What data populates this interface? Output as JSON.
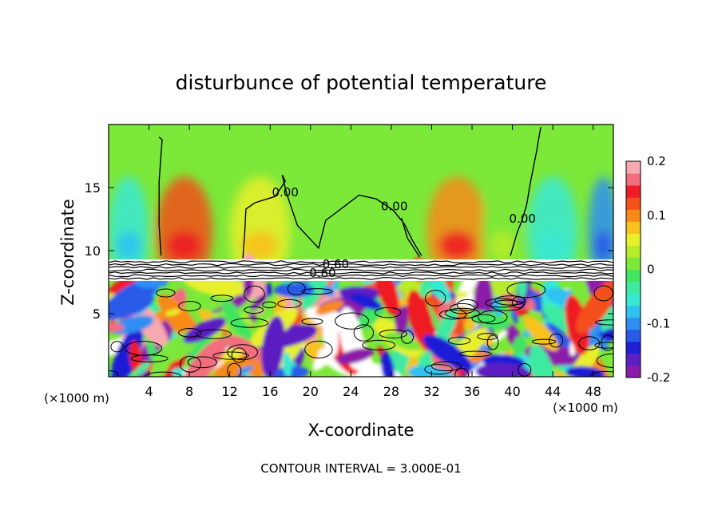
{
  "chart_data": {
    "type": "heatmap",
    "title": "disturbunce of potential temperature",
    "xlabel": "X-coordinate",
    "ylabel": "Z-coordinate",
    "x_unit": "(×1000 m)",
    "z_unit": "(×1000 m)",
    "xlim": [
      0,
      50
    ],
    "ylim": [
      0,
      20
    ],
    "x_ticks": [
      4,
      8,
      12,
      16,
      20,
      24,
      28,
      32,
      36,
      40,
      44,
      48
    ],
    "y_ticks": [
      5,
      10,
      15
    ],
    "colorbar": {
      "range": [
        -0.2,
        0.2
      ],
      "tick_labels": [
        "0.2",
        "0.1",
        "0",
        "-0.1",
        "-0.2"
      ],
      "tick_values": [
        0.2,
        0.1,
        0,
        -0.1,
        -0.2
      ],
      "colors": [
        "#8c1aa8",
        "#5b1fc2",
        "#1f1fd6",
        "#2a5ae8",
        "#2f8ef2",
        "#2fc3f0",
        "#38e8d2",
        "#3eeaa0",
        "#40e560",
        "#7ce83a",
        "#b6ec2c",
        "#e8f02a",
        "#f7c21e",
        "#f78a16",
        "#f2501a",
        "#ee1c24",
        "#f26d7d",
        "#f7a8b0"
      ]
    },
    "contour_labels": [
      {
        "text": "0.00",
        "x": 17.5,
        "z": 14.3
      },
      {
        "text": "0.00",
        "x": 28.3,
        "z": 13.2
      },
      {
        "text": "0.00",
        "x": 41.0,
        "z": 12.2
      },
      {
        "text": "0.60",
        "x": 22.5,
        "z": 8.6
      },
      {
        "text": "0.60",
        "x": 21.2,
        "z": 7.9
      }
    ],
    "upper_layer_bands": [
      {
        "x": 2.0,
        "w": 2.0,
        "v": -0.06
      },
      {
        "x": 7.5,
        "w": 2.8,
        "v": 0.12
      },
      {
        "x": 15.0,
        "w": 3.0,
        "v": 0.06
      },
      {
        "x": 34.5,
        "w": 3.0,
        "v": 0.11
      },
      {
        "x": 39.0,
        "w": 2.0,
        "v": 0.02
      },
      {
        "x": 44.0,
        "w": 2.5,
        "v": -0.05
      },
      {
        "x": 49.0,
        "w": 1.5,
        "v": -0.09
      }
    ],
    "annotation": "CONTOUR INTERVAL = 3.000E-01"
  }
}
